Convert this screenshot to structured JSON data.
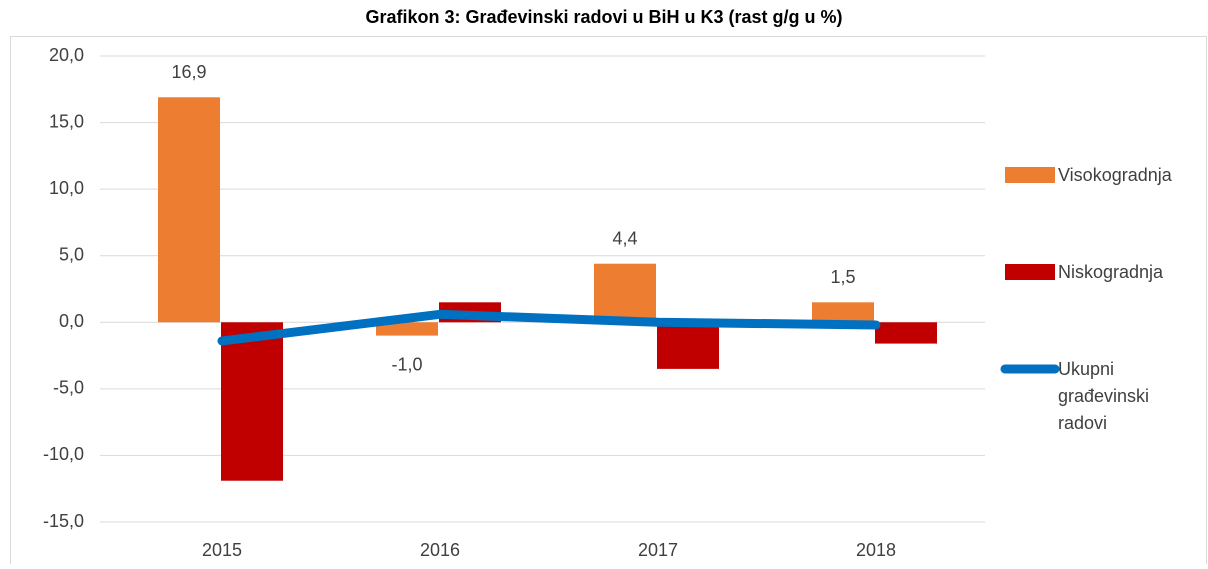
{
  "chart_data": {
    "type": "bar",
    "title": "Grafikon 3: Građevinski radovi u BiH u K3 (rast g/g u %)",
    "categories": [
      "2015",
      "2016",
      "2017",
      "2018"
    ],
    "series": [
      {
        "name": "Visokogradnja",
        "color": "#ed7d31",
        "values": [
          16.9,
          -1.0,
          4.4,
          1.5
        ],
        "value_labels": [
          "16,9",
          "-1,0",
          "4,4",
          "1,5"
        ]
      },
      {
        "name": "Niskogradnja",
        "color": "#c00000",
        "values": [
          -11.9,
          1.5,
          -3.5,
          -1.6
        ]
      },
      {
        "name": "Ukupni građevinski radovi",
        "color": "#0070c0",
        "type": "line",
        "values": [
          -1.4,
          0.6,
          0.0,
          -0.2
        ]
      }
    ],
    "ylim": [
      -15,
      20
    ],
    "yticks": [
      {
        "value": -15,
        "label": "-15,0"
      },
      {
        "value": -10,
        "label": "-10,0"
      },
      {
        "value": -5,
        "label": "-5,0"
      },
      {
        "value": 0,
        "label": "0,0"
      },
      {
        "value": 5,
        "label": "5,0"
      },
      {
        "value": 10,
        "label": "10,0"
      },
      {
        "value": 15,
        "label": "15,0"
      },
      {
        "value": 20,
        "label": "20,0"
      }
    ],
    "grid": true,
    "legend": "right"
  }
}
